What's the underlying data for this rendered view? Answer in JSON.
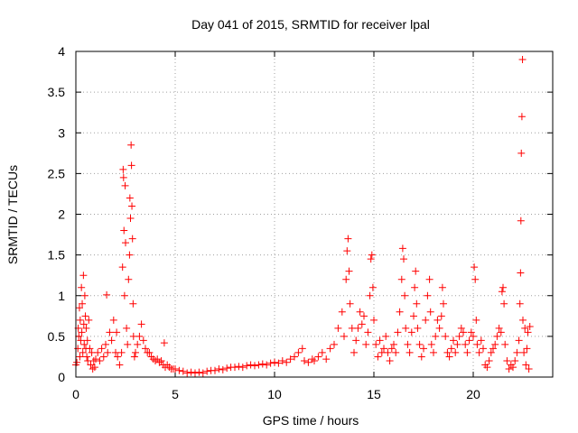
{
  "chart_data": {
    "type": "scatter",
    "title": "Day 041 of 2015, SRMTID for receiver lpal",
    "xlabel": "GPS time / hours",
    "ylabel": "SRMTID / TECUs",
    "xlim": [
      0,
      24
    ],
    "ylim": [
      0,
      4
    ],
    "xticks": [
      0,
      5,
      10,
      15,
      20
    ],
    "yticks": [
      0,
      0.5,
      1,
      1.5,
      2,
      2.5,
      3,
      3.5,
      4
    ],
    "ytick_labels": [
      "0",
      "0.5",
      "1",
      "1.5",
      "2",
      "2.5",
      "3",
      "3.5",
      "4"
    ],
    "grid": true,
    "marker": "+",
    "series": [
      {
        "name": "SRMTID",
        "color": "#ff0000",
        "points": [
          [
            0.0,
            0.15
          ],
          [
            0.05,
            0.18
          ],
          [
            0.1,
            0.35
          ],
          [
            0.12,
            0.6
          ],
          [
            0.15,
            0.5
          ],
          [
            0.18,
            0.85
          ],
          [
            0.2,
            0.25
          ],
          [
            0.22,
            0.7
          ],
          [
            0.25,
            0.45
          ],
          [
            0.28,
            1.1
          ],
          [
            0.3,
            0.55
          ],
          [
            0.32,
            0.9
          ],
          [
            0.35,
            0.3
          ],
          [
            0.38,
            1.25
          ],
          [
            0.4,
            0.65
          ],
          [
            0.42,
            0.4
          ],
          [
            0.45,
            1.0
          ],
          [
            0.48,
            0.75
          ],
          [
            0.5,
            0.35
          ],
          [
            0.52,
            0.6
          ],
          [
            0.55,
            0.25
          ],
          [
            0.58,
            0.45
          ],
          [
            0.6,
            0.2
          ],
          [
            0.65,
            0.7
          ],
          [
            0.7,
            0.35
          ],
          [
            0.75,
            0.15
          ],
          [
            0.8,
            0.3
          ],
          [
            0.85,
            0.1
          ],
          [
            0.9,
            0.2
          ],
          [
            0.95,
            0.12
          ],
          [
            1.0,
            0.22
          ],
          [
            1.1,
            0.3
          ],
          [
            1.2,
            0.2
          ],
          [
            1.3,
            0.35
          ],
          [
            1.4,
            0.25
          ],
          [
            1.5,
            0.4
          ],
          [
            1.55,
            1.01
          ],
          [
            1.6,
            0.3
          ],
          [
            1.7,
            0.55
          ],
          [
            1.8,
            0.45
          ],
          [
            1.9,
            0.7
          ],
          [
            2.0,
            0.3
          ],
          [
            2.05,
            0.55
          ],
          [
            2.1,
            0.25
          ],
          [
            2.2,
            0.15
          ],
          [
            2.3,
            0.3
          ],
          [
            2.35,
            1.35
          ],
          [
            2.38,
            2.55
          ],
          [
            2.4,
            2.45
          ],
          [
            2.42,
            1.8
          ],
          [
            2.45,
            1.0
          ],
          [
            2.48,
            2.35
          ],
          [
            2.5,
            1.65
          ],
          [
            2.55,
            0.6
          ],
          [
            2.6,
            0.4
          ],
          [
            2.65,
            1.2
          ],
          [
            2.7,
            1.5
          ],
          [
            2.72,
            2.2
          ],
          [
            2.75,
            1.95
          ],
          [
            2.78,
            2.85
          ],
          [
            2.8,
            2.6
          ],
          [
            2.82,
            2.1
          ],
          [
            2.85,
            1.7
          ],
          [
            2.88,
            0.9
          ],
          [
            2.9,
            0.5
          ],
          [
            2.95,
            0.25
          ],
          [
            3.0,
            0.3
          ],
          [
            3.1,
            0.4
          ],
          [
            3.2,
            0.5
          ],
          [
            3.3,
            0.65
          ],
          [
            3.4,
            0.45
          ],
          [
            3.5,
            0.35
          ],
          [
            3.6,
            0.3
          ],
          [
            3.7,
            0.3
          ],
          [
            3.8,
            0.25
          ],
          [
            3.9,
            0.22
          ],
          [
            4.0,
            0.2
          ],
          [
            4.1,
            0.22
          ],
          [
            4.2,
            0.18
          ],
          [
            4.3,
            0.2
          ],
          [
            4.4,
            0.15
          ],
          [
            4.45,
            0.42
          ],
          [
            4.5,
            0.12
          ],
          [
            4.6,
            0.15
          ],
          [
            4.7,
            0.12
          ],
          [
            4.8,
            0.1
          ],
          [
            4.9,
            0.1
          ],
          [
            5.0,
            0.1
          ],
          [
            5.2,
            0.08
          ],
          [
            5.4,
            0.07
          ],
          [
            5.6,
            0.05
          ],
          [
            5.8,
            0.06
          ],
          [
            6.0,
            0.05
          ],
          [
            6.2,
            0.06
          ],
          [
            6.4,
            0.05
          ],
          [
            6.6,
            0.07
          ],
          [
            6.8,
            0.08
          ],
          [
            7.0,
            0.08
          ],
          [
            7.2,
            0.1
          ],
          [
            7.4,
            0.09
          ],
          [
            7.6,
            0.11
          ],
          [
            7.8,
            0.12
          ],
          [
            8.0,
            0.12
          ],
          [
            8.2,
            0.13
          ],
          [
            8.4,
            0.12
          ],
          [
            8.6,
            0.14
          ],
          [
            8.8,
            0.15
          ],
          [
            9.0,
            0.14
          ],
          [
            9.2,
            0.15
          ],
          [
            9.4,
            0.16
          ],
          [
            9.6,
            0.15
          ],
          [
            9.8,
            0.17
          ],
          [
            10.0,
            0.18
          ],
          [
            10.2,
            0.17
          ],
          [
            10.4,
            0.2
          ],
          [
            10.6,
            0.18
          ],
          [
            10.8,
            0.22
          ],
          [
            11.0,
            0.25
          ],
          [
            11.2,
            0.3
          ],
          [
            11.4,
            0.35
          ],
          [
            11.5,
            0.2
          ],
          [
            11.7,
            0.18
          ],
          [
            11.9,
            0.22
          ],
          [
            12.0,
            0.2
          ],
          [
            12.2,
            0.25
          ],
          [
            12.4,
            0.3
          ],
          [
            12.6,
            0.22
          ],
          [
            12.8,
            0.35
          ],
          [
            13.0,
            0.4
          ],
          [
            13.2,
            0.6
          ],
          [
            13.4,
            0.8
          ],
          [
            13.5,
            0.5
          ],
          [
            13.6,
            1.2
          ],
          [
            13.65,
            1.55
          ],
          [
            13.7,
            1.7
          ],
          [
            13.75,
            1.3
          ],
          [
            13.8,
            0.9
          ],
          [
            13.9,
            0.6
          ],
          [
            14.0,
            0.3
          ],
          [
            14.1,
            0.45
          ],
          [
            14.2,
            0.6
          ],
          [
            14.3,
            0.8
          ],
          [
            14.4,
            0.65
          ],
          [
            14.5,
            0.75
          ],
          [
            14.6,
            0.4
          ],
          [
            14.7,
            0.55
          ],
          [
            14.8,
            1.0
          ],
          [
            14.85,
            1.45
          ],
          [
            14.9,
            1.5
          ],
          [
            14.95,
            1.1
          ],
          [
            15.0,
            0.7
          ],
          [
            15.1,
            0.4
          ],
          [
            15.2,
            0.25
          ],
          [
            15.3,
            0.45
          ],
          [
            15.4,
            0.3
          ],
          [
            15.5,
            0.35
          ],
          [
            15.6,
            0.5
          ],
          [
            15.7,
            0.3
          ],
          [
            15.8,
            0.2
          ],
          [
            15.9,
            0.35
          ],
          [
            16.0,
            0.4
          ],
          [
            16.1,
            0.3
          ],
          [
            16.2,
            0.55
          ],
          [
            16.3,
            0.8
          ],
          [
            16.4,
            1.2
          ],
          [
            16.45,
            1.58
          ],
          [
            16.5,
            1.45
          ],
          [
            16.55,
            1.0
          ],
          [
            16.6,
            0.6
          ],
          [
            16.7,
            0.4
          ],
          [
            16.8,
            0.3
          ],
          [
            16.9,
            0.55
          ],
          [
            17.0,
            0.75
          ],
          [
            17.05,
            1.1
          ],
          [
            17.1,
            1.3
          ],
          [
            17.15,
            0.9
          ],
          [
            17.2,
            0.6
          ],
          [
            17.3,
            0.4
          ],
          [
            17.4,
            0.25
          ],
          [
            17.5,
            0.35
          ],
          [
            17.6,
            0.7
          ],
          [
            17.7,
            1.0
          ],
          [
            17.8,
            1.2
          ],
          [
            17.85,
            0.8
          ],
          [
            17.9,
            0.4
          ],
          [
            18.0,
            0.3
          ],
          [
            18.1,
            0.5
          ],
          [
            18.2,
            0.7
          ],
          [
            18.3,
            0.6
          ],
          [
            18.4,
            0.75
          ],
          [
            18.45,
            1.1
          ],
          [
            18.5,
            0.9
          ],
          [
            18.6,
            0.5
          ],
          [
            18.7,
            0.3
          ],
          [
            18.8,
            0.25
          ],
          [
            18.9,
            0.35
          ],
          [
            19.0,
            0.45
          ],
          [
            19.1,
            0.3
          ],
          [
            19.2,
            0.4
          ],
          [
            19.3,
            0.5
          ],
          [
            19.4,
            0.6
          ],
          [
            19.5,
            0.55
          ],
          [
            19.6,
            0.4
          ],
          [
            19.7,
            0.3
          ],
          [
            19.8,
            0.45
          ],
          [
            19.9,
            0.55
          ],
          [
            20.0,
            0.5
          ],
          [
            20.05,
            1.35
          ],
          [
            20.1,
            1.2
          ],
          [
            20.15,
            0.7
          ],
          [
            20.2,
            0.4
          ],
          [
            20.3,
            0.3
          ],
          [
            20.4,
            0.45
          ],
          [
            20.5,
            0.35
          ],
          [
            20.6,
            0.15
          ],
          [
            20.7,
            0.12
          ],
          [
            20.8,
            0.2
          ],
          [
            20.9,
            0.3
          ],
          [
            21.0,
            0.35
          ],
          [
            21.1,
            0.4
          ],
          [
            21.2,
            0.5
          ],
          [
            21.3,
            0.6
          ],
          [
            21.4,
            0.55
          ],
          [
            21.45,
            1.05
          ],
          [
            21.5,
            1.1
          ],
          [
            21.55,
            0.9
          ],
          [
            21.6,
            0.4
          ],
          [
            21.7,
            0.2
          ],
          [
            21.8,
            0.1
          ],
          [
            21.9,
            0.15
          ],
          [
            22.0,
            0.12
          ],
          [
            22.1,
            0.2
          ],
          [
            22.2,
            0.3
          ],
          [
            22.3,
            0.45
          ],
          [
            22.35,
            0.9
          ],
          [
            22.38,
            1.28
          ],
          [
            22.4,
            1.92
          ],
          [
            22.42,
            2.75
          ],
          [
            22.45,
            3.2
          ],
          [
            22.48,
            3.9
          ],
          [
            22.5,
            0.7
          ],
          [
            22.55,
            0.3
          ],
          [
            22.6,
            0.6
          ],
          [
            22.65,
            0.15
          ],
          [
            22.7,
            0.35
          ],
          [
            22.75,
            0.55
          ],
          [
            22.8,
            0.1
          ],
          [
            22.85,
            0.62
          ]
        ]
      }
    ]
  }
}
